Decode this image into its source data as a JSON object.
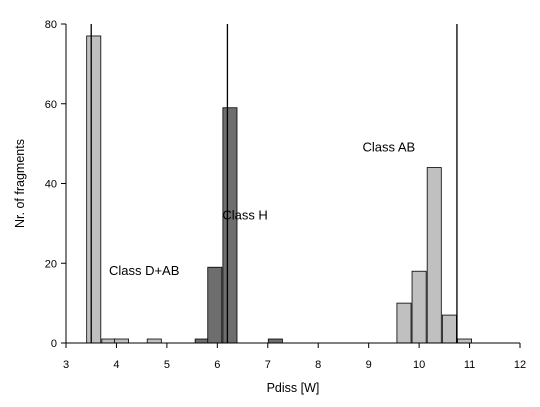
{
  "chart_data": {
    "type": "bar",
    "title": "",
    "xlabel": "Pdiss [W]",
    "ylabel": "Nr. of fragments",
    "xlim": [
      3,
      12
    ],
    "ylim": [
      0,
      80
    ],
    "xticks": [
      "3",
      "4",
      "5",
      "6",
      "7",
      "8",
      "9",
      "10",
      "11",
      "12"
    ],
    "yticks": [
      "0",
      "20",
      "40",
      "60",
      "80"
    ],
    "bin_width": 0.28,
    "grid": false,
    "legend": "none",
    "series": [
      {
        "color": "#c0c0c0",
        "bins": [
          {
            "x": 3.55,
            "y": 77
          },
          {
            "x": 3.85,
            "y": 1
          },
          {
            "x": 4.1,
            "y": 1
          },
          {
            "x": 4.75,
            "y": 1
          },
          {
            "x": 9.7,
            "y": 10
          },
          {
            "x": 10.0,
            "y": 18
          },
          {
            "x": 10.3,
            "y": 44
          },
          {
            "x": 10.6,
            "y": 7
          },
          {
            "x": 10.9,
            "y": 1
          }
        ]
      },
      {
        "color": "#6e6e6e",
        "bins": [
          {
            "x": 5.7,
            "y": 1
          },
          {
            "x": 5.95,
            "y": 19
          },
          {
            "x": 6.25,
            "y": 59
          },
          {
            "x": 7.15,
            "y": 1
          }
        ]
      }
    ],
    "vlines": [
      3.5,
      6.2,
      10.75
    ],
    "annotations": [
      {
        "text": "Class D+AB",
        "x": 4.55,
        "y": 17
      },
      {
        "text": "Class H",
        "x": 6.55,
        "y": 31
      },
      {
        "text": "Class AB",
        "x": 9.4,
        "y": 48
      }
    ]
  }
}
